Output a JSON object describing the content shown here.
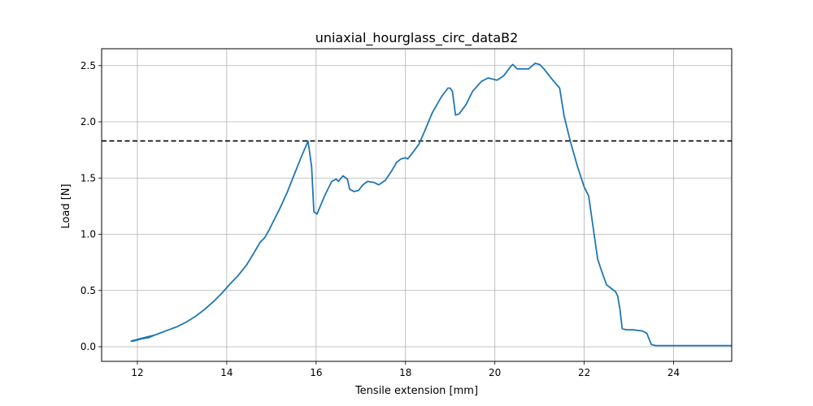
{
  "chart_data": {
    "type": "line",
    "title": "uniaxial_hourglass_circ_dataB2",
    "xlabel": "Tensile extension [mm]",
    "ylabel": "Load [N]",
    "xlim": [
      11.2,
      25.3
    ],
    "ylim": [
      -0.13,
      2.65
    ],
    "xticks": [
      12,
      14,
      16,
      18,
      20,
      22,
      24
    ],
    "xtick_labels": [
      "12",
      "14",
      "16",
      "18",
      "20",
      "22",
      "24"
    ],
    "yticks": [
      0.0,
      0.5,
      1.0,
      1.5,
      2.0,
      2.5
    ],
    "ytick_labels": [
      "0.0",
      "0.5",
      "1.0",
      "1.5",
      "2.0",
      "2.5"
    ],
    "grid": true,
    "reference_line": {
      "y": 1.83,
      "style": "dashed",
      "color": "#000000"
    },
    "series": [
      {
        "color": "#1f77b4",
        "x": [
          11.85,
          11.95,
          12.05,
          12.15,
          12.25,
          12.35,
          12.37,
          12.25,
          12.1,
          11.95,
          11.87,
          11.9,
          12.1,
          12.3,
          12.5,
          12.7,
          12.9,
          13.1,
          13.3,
          13.5,
          13.7,
          13.9,
          14.1,
          14.25,
          14.45,
          14.6,
          14.75,
          14.85,
          14.95,
          15.05,
          15.2,
          15.35,
          15.5,
          15.65,
          15.8,
          15.82,
          15.9,
          15.95,
          16.02,
          16.2,
          16.35,
          16.45,
          16.5,
          16.6,
          16.7,
          16.75,
          16.85,
          16.95,
          17.05,
          17.15,
          17.3,
          17.4,
          17.55,
          17.7,
          17.8,
          17.9,
          18.0,
          18.05,
          18.15,
          18.3,
          18.4,
          18.6,
          18.8,
          18.95,
          19.0,
          19.05,
          19.12,
          19.2,
          19.35,
          19.5,
          19.7,
          19.85,
          19.95,
          20.05,
          20.2,
          20.35,
          20.4,
          20.5,
          20.6,
          20.75,
          20.9,
          21.0,
          21.1,
          21.2,
          21.3,
          21.45,
          21.55,
          21.7,
          21.85,
          22.0,
          22.1,
          22.2,
          22.3,
          22.4,
          22.5,
          22.6,
          22.7,
          22.75,
          22.8,
          22.85,
          22.95,
          23.1,
          23.3,
          23.4,
          23.45,
          23.5,
          23.6,
          24.0,
          24.5,
          25.0,
          25.3
        ],
        "y": [
          0.05,
          0.06,
          0.07,
          0.08,
          0.09,
          0.1,
          0.1,
          0.08,
          0.07,
          0.06,
          0.05,
          0.05,
          0.07,
          0.09,
          0.12,
          0.15,
          0.18,
          0.22,
          0.27,
          0.33,
          0.4,
          0.48,
          0.57,
          0.63,
          0.73,
          0.83,
          0.93,
          0.97,
          1.04,
          1.12,
          1.24,
          1.37,
          1.52,
          1.67,
          1.81,
          1.83,
          1.6,
          1.2,
          1.18,
          1.35,
          1.47,
          1.49,
          1.47,
          1.52,
          1.49,
          1.4,
          1.38,
          1.39,
          1.44,
          1.47,
          1.46,
          1.44,
          1.48,
          1.57,
          1.64,
          1.67,
          1.68,
          1.67,
          1.72,
          1.8,
          1.89,
          2.08,
          2.22,
          2.3,
          2.3,
          2.27,
          2.06,
          2.07,
          2.15,
          2.27,
          2.36,
          2.39,
          2.38,
          2.37,
          2.41,
          2.49,
          2.51,
          2.47,
          2.47,
          2.47,
          2.52,
          2.51,
          2.47,
          2.42,
          2.37,
          2.3,
          2.05,
          1.81,
          1.6,
          1.42,
          1.34,
          1.06,
          0.78,
          0.66,
          0.55,
          0.52,
          0.49,
          0.45,
          0.33,
          0.16,
          0.15,
          0.15,
          0.14,
          0.12,
          0.07,
          0.02,
          0.01,
          0.01,
          0.01,
          0.01,
          0.01
        ]
      }
    ]
  }
}
